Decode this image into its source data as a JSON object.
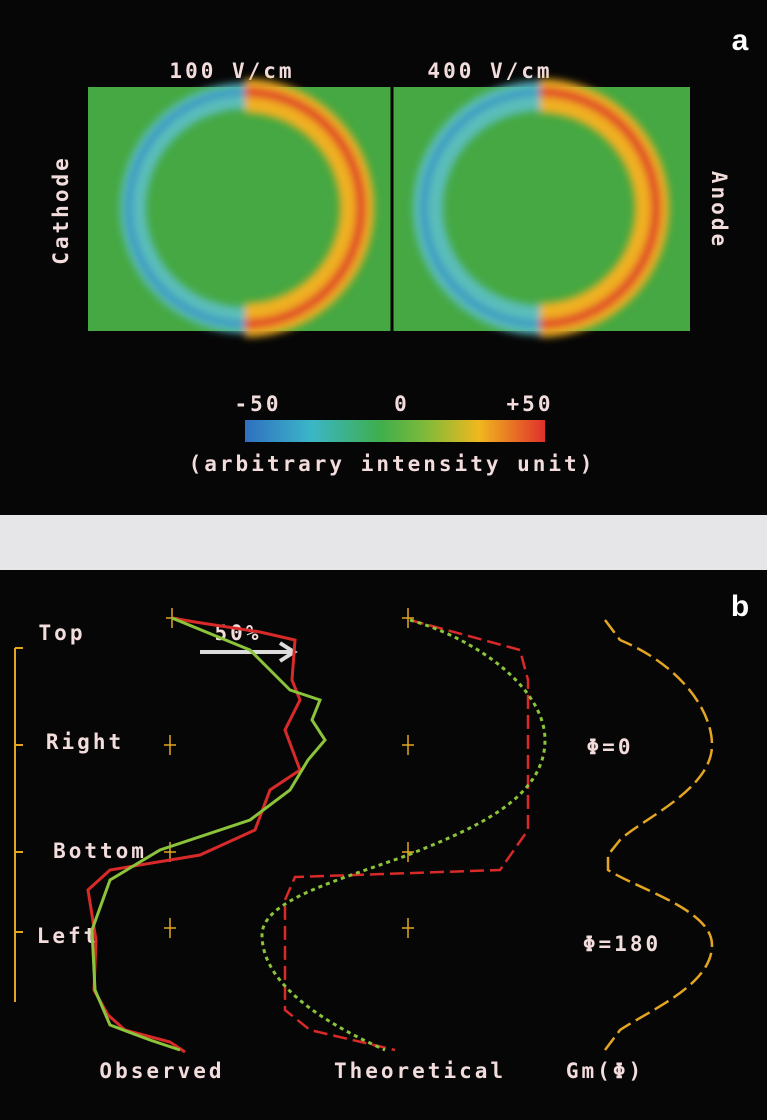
{
  "panel_a": {
    "label": "a",
    "titles": [
      "100 V/cm",
      "400 V/cm"
    ],
    "left_label": "Cathode",
    "right_label": "Anode",
    "colorbar_labels": [
      "-50",
      "0",
      "+50"
    ],
    "colorbar_caption": "(arbitrary intensity unit)"
  },
  "panel_b": {
    "label": "b",
    "scale_label": "50%",
    "positions": [
      "Top",
      "Right",
      "Bottom",
      "Left"
    ],
    "curve_labels": [
      "Observed",
      "Theoretical",
      "Gm(Φ)"
    ],
    "phase_labels": [
      "Φ=0",
      "Φ=180"
    ]
  }
}
